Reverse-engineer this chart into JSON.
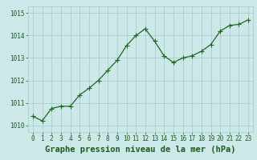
{
  "x": [
    0,
    1,
    2,
    3,
    4,
    5,
    6,
    7,
    8,
    9,
    10,
    11,
    12,
    13,
    14,
    15,
    16,
    17,
    18,
    19,
    20,
    21,
    22,
    23
  ],
  "y": [
    1010.4,
    1010.2,
    1010.75,
    1010.85,
    1010.85,
    1011.35,
    1011.65,
    1012.0,
    1012.45,
    1012.9,
    1013.55,
    1014.0,
    1014.3,
    1013.75,
    1013.1,
    1012.8,
    1013.0,
    1013.1,
    1013.3,
    1013.6,
    1014.2,
    1014.45,
    1014.5,
    1014.7
  ],
  "line_color": "#1a6b1a",
  "marker": "+",
  "marker_size": 4,
  "marker_linewidth": 0.8,
  "line_width": 0.9,
  "bg_color": "#cce8e8",
  "grid_color": "#aacece",
  "xlabel": "Graphe pression niveau de la mer (hPa)",
  "xlabel_color": "#1a5c1a",
  "xlabel_fontsize": 7.5,
  "tick_color": "#1a5c1a",
  "tick_fontsize": 5.5,
  "ytick_fontsize": 5.5,
  "ylim": [
    1009.7,
    1015.3
  ],
  "yticks": [
    1010,
    1011,
    1012,
    1013,
    1014,
    1015
  ],
  "xticks": [
    0,
    1,
    2,
    3,
    4,
    5,
    6,
    7,
    8,
    9,
    10,
    11,
    12,
    13,
    14,
    15,
    16,
    17,
    18,
    19,
    20,
    21,
    22,
    23
  ],
  "spine_color": "#aacece"
}
